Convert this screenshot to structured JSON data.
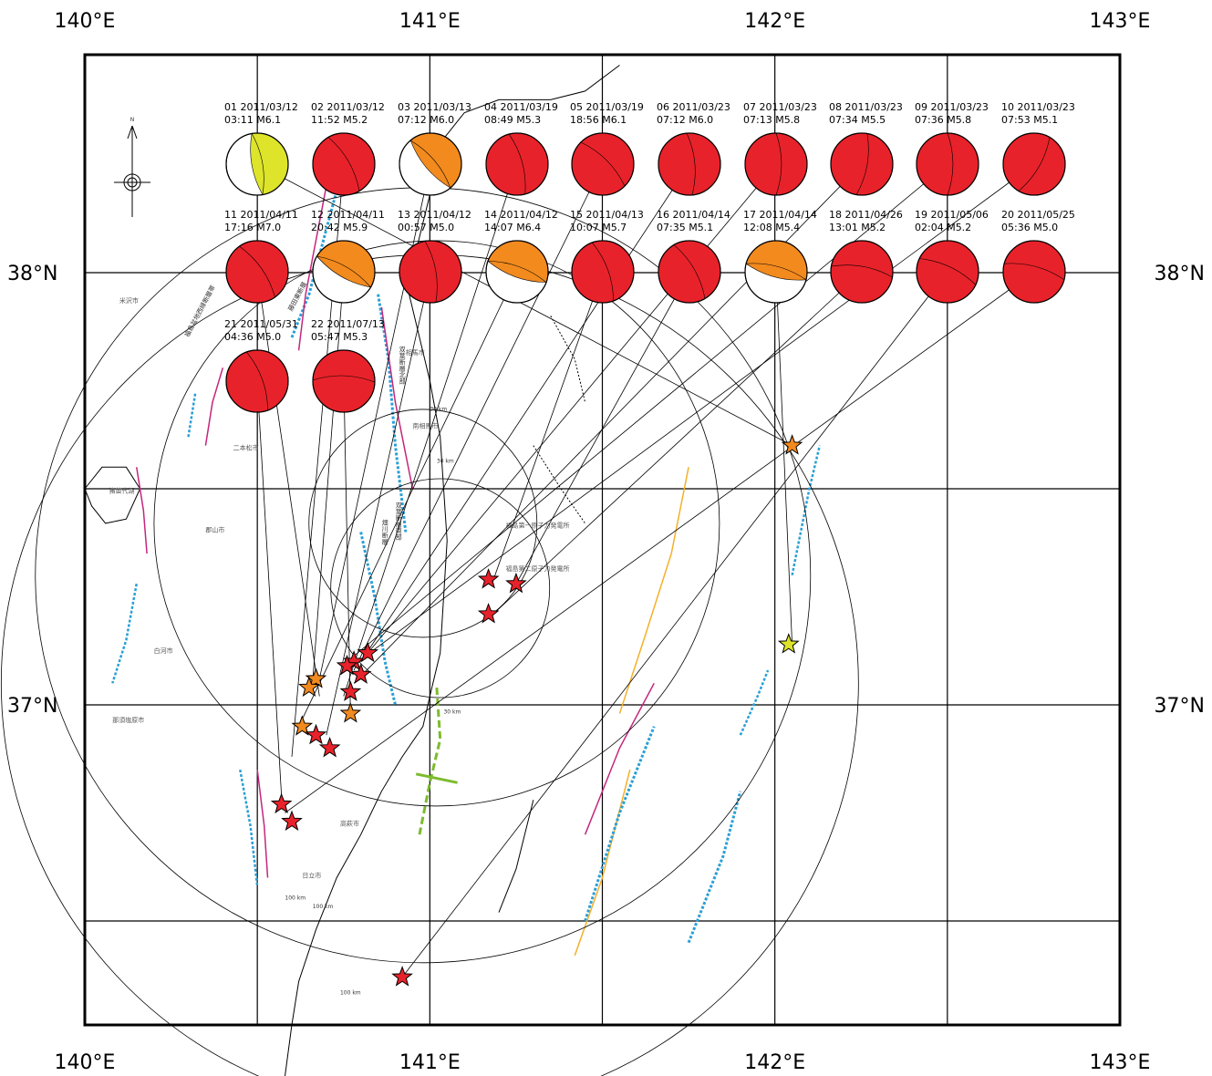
{
  "axes": {
    "top_lon_labels": [
      "140°E",
      "141°E",
      "142°E",
      "143°E"
    ],
    "bottom_lon_labels": [
      "140°E",
      "141°E",
      "142°E",
      "143°E"
    ],
    "left_lat_labels": [
      "38°N",
      "37°N"
    ],
    "right_lat_labels": [
      "38°N",
      "37°N"
    ]
  },
  "map_extent": {
    "lon_min": 140.0,
    "lon_max": 143.0,
    "lat_min": 36.3,
    "lat_max": 38.5
  },
  "colors": {
    "red": "#e8222a",
    "orange": "#f28a1e",
    "yellow": "#dde42a",
    "green_fault": "#7dbb2e",
    "blue_fault": "#2a9fd6",
    "magenta_fault": "#c4267c",
    "orange_fault": "#f4b02a"
  },
  "mechanisms": [
    {
      "id": "01",
      "date": "2011/03/12",
      "time": "03:11",
      "mag": "M6.1",
      "color": "yellow",
      "angle": -10,
      "lon": 142.05,
      "lat": 37.6
    },
    {
      "id": "02",
      "date": "2011/03/12",
      "time": "11:52",
      "mag": "M5.2",
      "color": "red",
      "angle": -30,
      "lon": 140.6,
      "lat": 36.88
    },
    {
      "id": "03",
      "date": "2011/03/13",
      "time": "07:12",
      "mag": "M6.0",
      "color": "orange",
      "angle": -40,
      "lon": 140.68,
      "lat": 37.06
    },
    {
      "id": "04",
      "date": "2011/03/19",
      "time": "08:49",
      "mag": "M5.3",
      "color": "red",
      "angle": -15,
      "lon": 140.75,
      "lat": 37.02
    },
    {
      "id": "05",
      "date": "2011/03/19",
      "time": "18:56",
      "mag": "M6.1",
      "color": "red",
      "angle": -45,
      "lon": 140.78,
      "lat": 37.08
    },
    {
      "id": "06",
      "date": "2011/03/23",
      "time": "07:12",
      "mag": "M6.0",
      "color": "red",
      "angle": -5,
      "lon": 140.8,
      "lat": 37.1
    },
    {
      "id": "07",
      "date": "2011/03/23",
      "time": "07:13",
      "mag": "M5.8",
      "color": "red",
      "angle": 0,
      "lon": 140.82,
      "lat": 37.12
    },
    {
      "id": "08",
      "date": "2011/03/23",
      "time": "07:34",
      "mag": "M5.5",
      "color": "red",
      "angle": 10,
      "lon": 140.78,
      "lat": 37.05
    },
    {
      "id": "09",
      "date": "2011/03/23",
      "time": "07:36",
      "mag": "M5.8",
      "color": "red",
      "angle": 0,
      "lon": 140.76,
      "lat": 37.1
    },
    {
      "id": "10",
      "date": "2011/03/23",
      "time": "07:53",
      "mag": "M5.1",
      "color": "red",
      "angle": 30,
      "lon": 140.74,
      "lat": 37.07
    },
    {
      "id": "11",
      "date": "2011/04/11",
      "time": "17:16",
      "mag": "M7.0",
      "color": "red",
      "angle": -35,
      "lon": 140.68,
      "lat": 37.02
    },
    {
      "id": "12",
      "date": "2011/04/11",
      "time": "20:42",
      "mag": "M5.9",
      "color": "orange",
      "angle": -60,
      "lon": 140.66,
      "lat": 37.05
    },
    {
      "id": "13",
      "date": "2011/04/12",
      "time": "00:57",
      "mag": "M5.0",
      "color": "red",
      "angle": -10,
      "lon": 140.7,
      "lat": 36.93
    },
    {
      "id": "14",
      "date": "2011/04/12",
      "time": "14:07",
      "mag": "M6.4",
      "color": "orange",
      "angle": -70,
      "lon": 140.62,
      "lat": 36.95
    },
    {
      "id": "15",
      "date": "2011/04/13",
      "time": "10:07",
      "mag": "M5.7",
      "color": "red",
      "angle": -20,
      "lon": 141.18,
      "lat": 37.28
    },
    {
      "id": "16",
      "date": "2011/04/14",
      "time": "07:35",
      "mag": "M5.1",
      "color": "red",
      "angle": -30,
      "lon": 141.25,
      "lat": 37.28
    },
    {
      "id": "17",
      "date": "2011/04/14",
      "time": "12:08",
      "mag": "M5.4",
      "color": "orange",
      "angle": -75,
      "lon": 142.05,
      "lat": 37.14
    },
    {
      "id": "18",
      "date": "2011/04/26",
      "time": "13:01",
      "mag": "M5.2",
      "color": "red",
      "angle": -80,
      "lon": 141.17,
      "lat": 37.2
    },
    {
      "id": "19",
      "date": "2011/05/06",
      "time": "02:04",
      "mag": "M5.2",
      "color": "red",
      "angle": -65,
      "lon": 140.92,
      "lat": 36.37
    },
    {
      "id": "20",
      "date": "2011/05/25",
      "time": "05:36",
      "mag": "M5.0",
      "color": "red",
      "angle": -75,
      "lon": 140.58,
      "lat": 36.75
    },
    {
      "id": "21",
      "date": "2011/05/31",
      "time": "04:36",
      "mag": "M5.0",
      "color": "red",
      "angle": -20,
      "lon": 140.57,
      "lat": 36.79
    },
    {
      "id": "22",
      "date": "2011/07/13",
      "time": "05:47",
      "mag": "M5.3",
      "color": "red",
      "angle": -88,
      "lon": 140.77,
      "lat": 36.98
    }
  ],
  "stars": [
    {
      "lon": 142.05,
      "lat": 37.6,
      "color": "orange"
    },
    {
      "lon": 142.04,
      "lat": 37.14,
      "color": "yellow"
    },
    {
      "lon": 141.17,
      "lat": 37.29,
      "color": "red"
    },
    {
      "lon": 141.25,
      "lat": 37.28,
      "color": "red"
    },
    {
      "lon": 141.17,
      "lat": 37.21,
      "color": "red"
    },
    {
      "lon": 140.78,
      "lat": 37.1,
      "color": "red"
    },
    {
      "lon": 140.82,
      "lat": 37.12,
      "color": "red"
    },
    {
      "lon": 140.8,
      "lat": 37.07,
      "color": "red"
    },
    {
      "lon": 140.77,
      "lat": 37.03,
      "color": "red"
    },
    {
      "lon": 140.76,
      "lat": 37.09,
      "color": "red"
    },
    {
      "lon": 140.67,
      "lat": 37.06,
      "color": "orange"
    },
    {
      "lon": 140.65,
      "lat": 37.04,
      "color": "orange"
    },
    {
      "lon": 140.77,
      "lat": 36.98,
      "color": "orange"
    },
    {
      "lon": 140.63,
      "lat": 36.95,
      "color": "orange"
    },
    {
      "lon": 140.67,
      "lat": 36.93,
      "color": "red"
    },
    {
      "lon": 140.71,
      "lat": 36.9,
      "color": "red"
    },
    {
      "lon": 140.57,
      "lat": 36.77,
      "color": "red"
    },
    {
      "lon": 140.6,
      "lat": 36.73,
      "color": "red"
    },
    {
      "lon": 140.92,
      "lat": 36.37,
      "color": "red"
    }
  ],
  "place_names": [
    {
      "text": "米沢市",
      "lon": 140.1,
      "lat": 37.93
    },
    {
      "text": "二本松市",
      "lon": 140.43,
      "lat": 37.59
    },
    {
      "text": "猪苗代湖",
      "lon": 140.07,
      "lat": 37.49
    },
    {
      "text": "郡山市",
      "lon": 140.35,
      "lat": 37.4
    },
    {
      "text": "白河市",
      "lon": 140.2,
      "lat": 37.12
    },
    {
      "text": "那須塩原市",
      "lon": 140.08,
      "lat": 36.96
    },
    {
      "text": "高萩市",
      "lon": 140.74,
      "lat": 36.72
    },
    {
      "text": "日立市",
      "lon": 140.63,
      "lat": 36.6
    },
    {
      "text": "相馬市",
      "lon": 140.93,
      "lat": 37.81
    },
    {
      "text": "南相馬市",
      "lon": 140.95,
      "lat": 37.64
    },
    {
      "text": "福島第一原子力発電所",
      "lon": 141.22,
      "lat": 37.41
    },
    {
      "text": "福島第二原子力発電所",
      "lon": 141.22,
      "lat": 37.31
    }
  ],
  "fault_labels": [
    {
      "text": "双葉断層北部",
      "lon": 140.92,
      "lat": 37.83,
      "vertical": true
    },
    {
      "text": "双葉断層南部",
      "lon": 140.91,
      "lat": 37.47,
      "vertical": true
    },
    {
      "text": "畑川断層",
      "lon": 140.87,
      "lat": 37.43,
      "vertical": true
    },
    {
      "text": "福島盆地西縁断層帯",
      "lon": 140.3,
      "lat": 37.85,
      "vertical": false
    },
    {
      "text": "藤田西断層",
      "lon": 140.53,
      "lat": 37.96,
      "vertical": false
    },
    {
      "text": "藤田東断層",
      "lon": 140.6,
      "lat": 37.91,
      "vertical": false
    }
  ],
  "distance_labels": [
    "30 km",
    "30 km",
    "30 km",
    "100 km",
    "100 km",
    "100 km"
  ],
  "north_label": "N"
}
